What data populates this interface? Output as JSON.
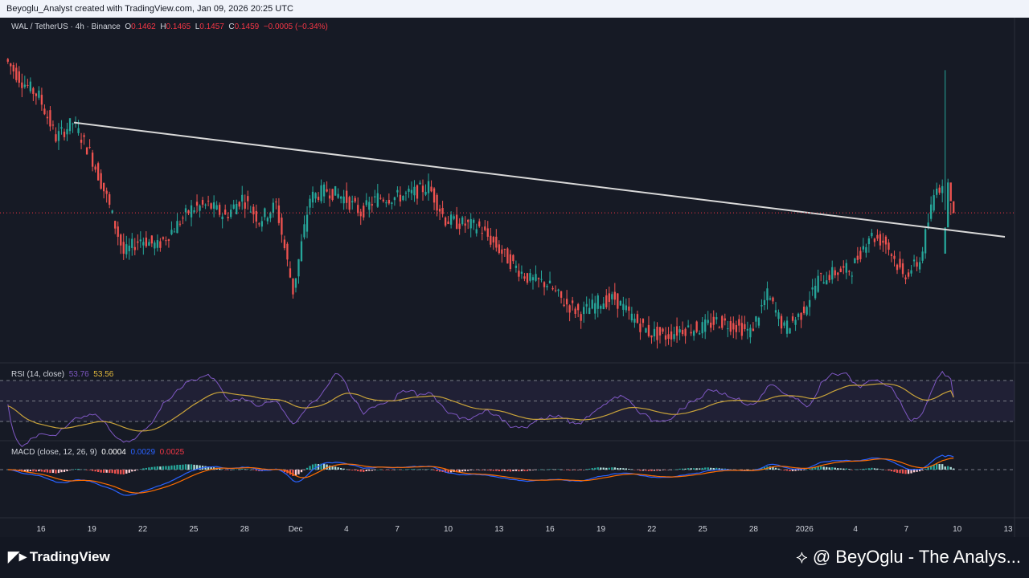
{
  "header": {
    "caption": "Beyoglu_Analyst created with TradingView.com, Jan 09, 2026 20:25 UTC"
  },
  "main_legend": {
    "symbol": "WAL / TetherUS · 4h · Binance",
    "open_label": "O",
    "open": "0.1462",
    "high_label": "H",
    "high": "0.1465",
    "low_label": "L",
    "low": "0.1457",
    "close_label": "C",
    "close": "0.1459",
    "change": "−0.0005 (−0.34%)"
  },
  "rsi_legend": {
    "label": "RSI (14, close)",
    "rsi": "53.76",
    "rsi_ma": "53.56"
  },
  "macd_legend": {
    "label": "MACD (close, 12, 26, 9)",
    "histogram": "0.0004",
    "macd": "0.0029",
    "signal": "0.0025"
  },
  "x_axis": {
    "labels": [
      "16",
      "19",
      "22",
      "25",
      "28",
      "Dec",
      "4",
      "7",
      "10",
      "13",
      "16",
      "19",
      "22",
      "25",
      "28",
      "2026",
      "4",
      "7",
      "10",
      "13"
    ]
  },
  "footer": {
    "brand": "TradingView",
    "credit": "@ BeyOglu - The Analys..."
  },
  "colors": {
    "up": "#26a69a",
    "down": "#ef5350",
    "rsi": "#7e57c2",
    "rsi_ma": "#c9a33a",
    "macd": "#2962ff",
    "signal": "#ff6d00",
    "trendline": "#d9d9d9",
    "background": "#161a25"
  },
  "chart_data": [
    {
      "type": "line",
      "title": "WAL / TetherUS · 4h · Binance",
      "description_series": "price close path (approximate)",
      "x": [
        "Nov 14",
        "Nov 15",
        "Nov 16",
        "Nov 17",
        "Nov 18",
        "Nov 19",
        "Nov 20",
        "Nov 21",
        "Nov 22",
        "Nov 23",
        "Nov 24",
        "Nov 25",
        "Nov 26",
        "Nov 27",
        "Nov 28",
        "Nov 29",
        "Nov 30",
        "Dec 1",
        "Dec 2",
        "Dec 3",
        "Dec 4",
        "Dec 5",
        "Dec 6",
        "Dec 7",
        "Dec 8",
        "Dec 9",
        "Dec 10",
        "Dec 11",
        "Dec 12",
        "Dec 13",
        "Dec 14",
        "Dec 15",
        "Dec 16",
        "Dec 17",
        "Dec 18",
        "Dec 19",
        "Dec 20",
        "Dec 21",
        "Dec 22",
        "Dec 23",
        "Dec 24",
        "Dec 25",
        "Dec 26",
        "Dec 27",
        "Dec 28",
        "Dec 29",
        "Dec 30",
        "Dec 31",
        "Jan 1",
        "Jan 2",
        "Jan 3",
        "Jan 4",
        "Jan 5",
        "Jan 6",
        "Jan 7",
        "Jan 8",
        "Jan 9"
      ],
      "series": [
        {
          "values": [
            0.187,
            0.181,
            0.177,
            0.166,
            0.17,
            0.162,
            0.15,
            0.135,
            0.139,
            0.137,
            0.142,
            0.147,
            0.148,
            0.145,
            0.15,
            0.144,
            0.148,
            0.125,
            0.15,
            0.152,
            0.15,
            0.146,
            0.15,
            0.15,
            0.151,
            0.153,
            0.144,
            0.143,
            0.142,
            0.137,
            0.132,
            0.128,
            0.127,
            0.122,
            0.119,
            0.122,
            0.123,
            0.118,
            0.114,
            0.113,
            0.115,
            0.115,
            0.117,
            0.116,
            0.114,
            0.124,
            0.115,
            0.119,
            0.128,
            0.13,
            0.131,
            0.14,
            0.138,
            0.129,
            0.133,
            0.154,
            0.146
          ]
        }
      ],
      "annotations": [
        "descending trendline"
      ],
      "last_price_line": 0.1459
    },
    {
      "type": "line",
      "title": "RSI (14, close)",
      "series": [
        {
          "name": "RSI",
          "values": [
            53.76
          ]
        },
        {
          "name": "RSI MA",
          "values": [
            53.56
          ]
        }
      ]
    },
    {
      "type": "bar",
      "title": "MACD (close, 12, 26, 9)",
      "series": [
        {
          "name": "Histogram",
          "values": [
            0.0004
          ]
        },
        {
          "name": "MACD",
          "values": [
            0.0029
          ]
        },
        {
          "name": "Signal",
          "values": [
            0.0025
          ]
        }
      ]
    }
  ]
}
